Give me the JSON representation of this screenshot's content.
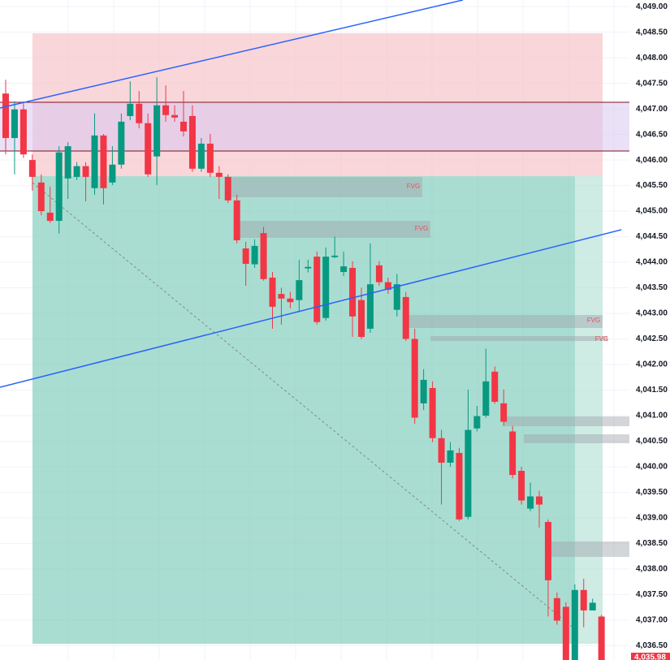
{
  "chart_data": {
    "type": "candlestick",
    "up_color": "#089981",
    "down_color": "#f23645",
    "ylim": [
      4036.22,
      4049.13
    ],
    "yticks": [
      {
        "value": 4036.5,
        "label": "4,036.50"
      },
      {
        "value": 4037,
        "label": "4,037.00"
      },
      {
        "value": 4037.5,
        "label": "4,037.50"
      },
      {
        "value": 4038,
        "label": "4,038.00"
      },
      {
        "value": 4038.5,
        "label": "4,038.50"
      },
      {
        "value": 4039,
        "label": "4,039.00"
      },
      {
        "value": 4039.5,
        "label": "4,039.50"
      },
      {
        "value": 4040,
        "label": "4,040.00"
      },
      {
        "value": 4040.5,
        "label": "4,040.50"
      },
      {
        "value": 4041,
        "label": "4,041.00"
      },
      {
        "value": 4041.5,
        "label": "4,041.50"
      },
      {
        "value": 4042,
        "label": "4,042.00"
      },
      {
        "value": 4042.5,
        "label": "4,042.50"
      },
      {
        "value": 4043,
        "label": "4,043.00"
      },
      {
        "value": 4043.5,
        "label": "4,043.50"
      },
      {
        "value": 4044,
        "label": "4,044.00"
      },
      {
        "value": 4044.5,
        "label": "4,044.50"
      },
      {
        "value": 4045,
        "label": "4,045.00"
      },
      {
        "value": 4045.5,
        "label": "4,045.50"
      },
      {
        "value": 4046,
        "label": "4,046.00"
      },
      {
        "value": 4046.5,
        "label": "4,046.50"
      },
      {
        "value": 4047,
        "label": "4,047.00"
      },
      {
        "value": 4047.5,
        "label": "4,047.50"
      },
      {
        "value": 4048,
        "label": "4,048.00"
      },
      {
        "value": 4048.5,
        "label": "4,048.50"
      },
      {
        "value": 4049,
        "label": "4,049.00"
      }
    ],
    "open": [
      4047.3,
      4046.43,
      4046.99,
      4046.0,
      4045.56,
      4044.97,
      4044.81,
      4045.64,
      4045.67,
      4045.88,
      4045.45,
      4046.48,
      4045.56,
      4045.91,
      4046.86,
      4047.1,
      4046.72,
      4046.07,
      4047.07,
      4046.88,
      4046.75,
      4046.86,
      4045.83,
      4046.32,
      4045.75,
      4045.67,
      4045.21,
      4044.27,
      4043.96,
      4044.57,
      4043.7,
      4043.38,
      4043.29,
      4043.26,
      4043.88,
      4044.11,
      4042.91,
      4044.1,
      4043.81,
      4043.89,
      4043.26,
      4042.7,
      4043.94,
      4043.61,
      4043.07,
      4043.32,
      4042.5,
      4041.24,
      4041.54,
      4040.56,
      4040.08,
      4040.27,
      4039.02,
      4040.75,
      4041.0,
      4041.86,
      4041.24,
      4040.69,
      4039.92,
      4039.18,
      4039.42,
      4038.92,
      4037.43,
      4037.26,
      4036.05,
      4037.59,
      4037.19,
      4037.07
    ],
    "high": [
      4047.57,
      4047.15,
      4047.15,
      4046.11,
      4045.72,
      4045.48,
      4046.27,
      4046.35,
      4045.96,
      4045.96,
      4046.91,
      4046.51,
      4046.27,
      4046.91,
      4047.54,
      4047.35,
      4046.91,
      4047.62,
      4047.46,
      4047.07,
      4047.35,
      4047.07,
      4046.43,
      4046.51,
      4045.88,
      4045.72,
      4045.32,
      4044.4,
      4044.45,
      4044.69,
      4043.81,
      4043.5,
      4043.42,
      4044.05,
      4044.05,
      4044.21,
      4044.29,
      4044.5,
      4044.21,
      4044.02,
      4043.5,
      4044.37,
      4044.02,
      4043.7,
      4043.77,
      4043.42,
      4042.7,
      4041.91,
      4041.67,
      4040.72,
      4040.48,
      4040.37,
      4041.51,
      4041.19,
      4042.31,
      4041.96,
      4041.51,
      4040.8,
      4040.0,
      4039.69,
      4039.53,
      4038.97,
      4037.54,
      4037.35,
      4037.7,
      4037.81,
      4037.42,
      4037.1
    ],
    "low": [
      4046.11,
      4045.72,
      4046.04,
      4045.4,
      4044.92,
      4044.77,
      4044.56,
      4045.24,
      4045.61,
      4045.19,
      4045.32,
      4045.13,
      4045.51,
      4045.83,
      4046.78,
      4046.62,
      4045.67,
      4045.51,
      4046.75,
      4046.75,
      4046.46,
      4045.77,
      4045.77,
      4045.67,
      4045.24,
      4045.16,
      4044.37,
      4043.54,
      4043.89,
      4043.64,
      4042.7,
      4042.78,
      4043.1,
      4043.02,
      4043.8,
      4042.78,
      4042.86,
      4044.08,
      4043.73,
      4042.54,
      4042.5,
      4042.62,
      4043.54,
      4043.38,
      4042.94,
      4042.46,
      4040.84,
      4041.11,
      4040.48,
      4039.26,
      4040.0,
      4038.94,
      4038.97,
      4040.69,
      4040.96,
      4041.23,
      4040.8,
      4039.77,
      4039.26,
      4039.13,
      4038.81,
      4037.07,
      4036.91,
      4035.95,
      4035.95,
      4036.86,
      4037.19,
      4035.95
    ],
    "close": [
      4046.43,
      4046.99,
      4046.11,
      4045.67,
      4045.0,
      4044.81,
      4046.15,
      4046.27,
      4045.88,
      4045.67,
      4046.48,
      4045.45,
      4045.91,
      4046.75,
      4047.1,
      4046.72,
      4045.72,
      4047.07,
      4046.88,
      4046.83,
      4046.56,
      4045.83,
      4046.32,
      4045.75,
      4045.67,
      4045.21,
      4044.43,
      4043.97,
      4044.32,
      4043.67,
      4043.13,
      4043.29,
      4043.22,
      4043.65,
      4043.91,
      4042.83,
      4044.11,
      4044.13,
      4043.92,
      4042.94,
      4042.54,
      4043.57,
      4043.61,
      4043.46,
      4043.57,
      4042.5,
      4040.96,
      4041.7,
      4040.56,
      4040.08,
      4040.32,
      4038.97,
      4040.72,
      4040.99,
      4041.67,
      4041.27,
      4040.88,
      4039.84,
      4039.34,
      4039.42,
      4039.26,
      4037.78,
      4036.99,
      4036.05,
      4037.59,
      4037.19,
      4037.34,
      4035.98
    ],
    "fvg_labels": [
      "FVG",
      "FVG",
      "FVG",
      "FVG"
    ],
    "last_price_label": "4,035.98"
  }
}
